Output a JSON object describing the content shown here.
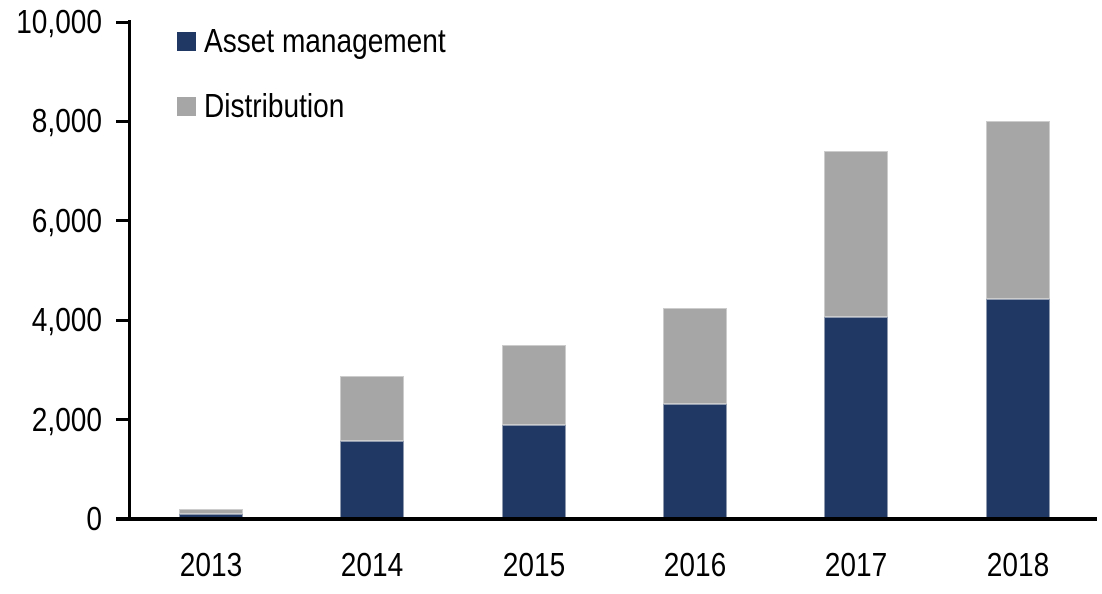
{
  "chart_data": {
    "type": "bar",
    "stacked": true,
    "title": "",
    "xlabel": "",
    "ylabel": "",
    "categories": [
      "2013",
      "2014",
      "2015",
      "2016",
      "2017",
      "2018"
    ],
    "series": [
      {
        "name": "Asset management",
        "color": "#1f3864",
        "values": [
          100,
          1570,
          1900,
          2320,
          4060,
          4430
        ]
      },
      {
        "name": "Distribution",
        "color": "#a6a6a6",
        "values": [
          100,
          1310,
          1600,
          1930,
          3340,
          3570
        ]
      }
    ],
    "totals": [
      200,
      2880,
      3500,
      4250,
      7400,
      8000
    ],
    "ylim": [
      0,
      10000
    ],
    "yticks": [
      {
        "value": 0,
        "label": "0"
      },
      {
        "value": 2000,
        "label": "2,000"
      },
      {
        "value": 4000,
        "label": "4,000"
      },
      {
        "value": 6000,
        "label": "6,000"
      },
      {
        "value": 8000,
        "label": "8,000"
      },
      {
        "value": 10000,
        "label": "10,000"
      }
    ],
    "grid": false,
    "legend_position": "top-left-inside"
  },
  "colors": {
    "axis": "#000000",
    "text": "#000000",
    "background": "#ffffff"
  }
}
